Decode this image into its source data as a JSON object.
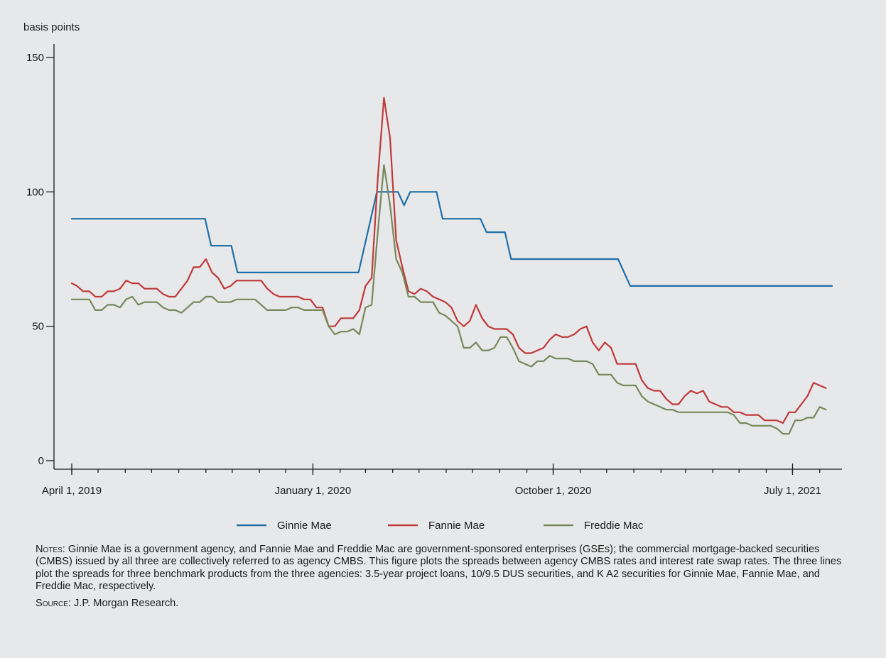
{
  "chart_data": {
    "type": "line",
    "title": "",
    "ylabel": "basis points",
    "xlabel": "",
    "ylim": [
      0,
      150
    ],
    "xlim": [
      "2019-04-01",
      "2021-08-15"
    ],
    "y_ticks": [
      0,
      50,
      100,
      150
    ],
    "x_ticks": [
      {
        "date": "2019-04-01",
        "label": "April 1, 2019"
      },
      {
        "date": "2020-01-01",
        "label": "January 1, 2020"
      },
      {
        "date": "2020-10-01",
        "label": "October 1, 2020"
      },
      {
        "date": "2021-07-01",
        "label": "July 1, 2021"
      }
    ],
    "grid": false,
    "legend_position": "bottom-center",
    "series": [
      {
        "name": "Ginnie Mae",
        "color": "#1f6fa8",
        "points": [
          [
            "2019-04-01",
            90
          ],
          [
            "2019-08-31",
            90
          ],
          [
            "2019-09-07",
            80
          ],
          [
            "2019-09-30",
            80
          ],
          [
            "2019-10-07",
            70
          ],
          [
            "2020-02-14",
            70
          ],
          [
            "2020-02-22",
            70
          ],
          [
            "2020-03-14",
            100
          ],
          [
            "2020-04-07",
            100
          ],
          [
            "2020-04-14",
            95
          ],
          [
            "2020-04-21",
            100
          ],
          [
            "2020-05-21",
            100
          ],
          [
            "2020-05-28",
            90
          ],
          [
            "2020-07-10",
            90
          ],
          [
            "2020-07-17",
            85
          ],
          [
            "2020-08-07",
            85
          ],
          [
            "2020-08-14",
            75
          ],
          [
            "2020-12-14",
            75
          ],
          [
            "2020-12-28",
            65
          ],
          [
            "2021-08-15",
            65
          ]
        ]
      },
      {
        "name": "Fannie Mae",
        "color": "#c0393b",
        "points": [
          [
            "2019-04-01",
            66
          ],
          [
            "2019-04-07",
            65
          ],
          [
            "2019-04-14",
            63
          ],
          [
            "2019-04-21",
            63
          ],
          [
            "2019-04-28",
            61
          ],
          [
            "2019-05-05",
            61
          ],
          [
            "2019-05-12",
            63
          ],
          [
            "2019-05-19",
            63
          ],
          [
            "2019-05-26",
            64
          ],
          [
            "2019-06-02",
            67
          ],
          [
            "2019-06-09",
            66
          ],
          [
            "2019-06-16",
            66
          ],
          [
            "2019-06-23",
            64
          ],
          [
            "2019-06-30",
            64
          ],
          [
            "2019-07-07",
            64
          ],
          [
            "2019-07-14",
            62
          ],
          [
            "2019-07-21",
            61
          ],
          [
            "2019-07-28",
            61
          ],
          [
            "2019-08-04",
            64
          ],
          [
            "2019-08-11",
            67
          ],
          [
            "2019-08-18",
            72
          ],
          [
            "2019-08-25",
            72
          ],
          [
            "2019-09-01",
            75
          ],
          [
            "2019-09-08",
            70
          ],
          [
            "2019-09-15",
            68
          ],
          [
            "2019-09-22",
            64
          ],
          [
            "2019-09-29",
            65
          ],
          [
            "2019-10-06",
            67
          ],
          [
            "2019-10-13",
            67
          ],
          [
            "2019-10-20",
            67
          ],
          [
            "2019-10-27",
            67
          ],
          [
            "2019-11-03",
            67
          ],
          [
            "2019-11-10",
            64
          ],
          [
            "2019-11-17",
            62
          ],
          [
            "2019-11-24",
            61
          ],
          [
            "2019-12-01",
            61
          ],
          [
            "2019-12-08",
            61
          ],
          [
            "2019-12-15",
            61
          ],
          [
            "2019-12-22",
            60
          ],
          [
            "2019-12-29",
            60
          ],
          [
            "2020-01-05",
            57
          ],
          [
            "2020-01-12",
            57
          ],
          [
            "2020-01-19",
            50
          ],
          [
            "2020-01-26",
            50
          ],
          [
            "2020-02-02",
            53
          ],
          [
            "2020-02-09",
            53
          ],
          [
            "2020-02-16",
            53
          ],
          [
            "2020-02-23",
            56
          ],
          [
            "2020-03-01",
            65
          ],
          [
            "2020-03-08",
            68
          ],
          [
            "2020-03-15",
            105
          ],
          [
            "2020-03-22",
            135
          ],
          [
            "2020-03-29",
            120
          ],
          [
            "2020-04-05",
            82
          ],
          [
            "2020-04-12",
            72
          ],
          [
            "2020-04-19",
            63
          ],
          [
            "2020-04-26",
            62
          ],
          [
            "2020-05-03",
            64
          ],
          [
            "2020-05-10",
            63
          ],
          [
            "2020-05-17",
            61
          ],
          [
            "2020-05-24",
            60
          ],
          [
            "2020-05-31",
            59
          ],
          [
            "2020-06-07",
            57
          ],
          [
            "2020-06-14",
            52
          ],
          [
            "2020-06-21",
            50
          ],
          [
            "2020-06-28",
            52
          ],
          [
            "2020-07-05",
            58
          ],
          [
            "2020-07-12",
            53
          ],
          [
            "2020-07-19",
            50
          ],
          [
            "2020-07-26",
            49
          ],
          [
            "2020-08-02",
            49
          ],
          [
            "2020-08-09",
            49
          ],
          [
            "2020-08-16",
            47
          ],
          [
            "2020-08-23",
            42
          ],
          [
            "2020-08-30",
            40
          ],
          [
            "2020-09-06",
            40
          ],
          [
            "2020-09-13",
            41
          ],
          [
            "2020-09-20",
            42
          ],
          [
            "2020-09-27",
            45
          ],
          [
            "2020-10-04",
            47
          ],
          [
            "2020-10-11",
            46
          ],
          [
            "2020-10-18",
            46
          ],
          [
            "2020-10-25",
            47
          ],
          [
            "2020-11-01",
            49
          ],
          [
            "2020-11-08",
            50
          ],
          [
            "2020-11-15",
            44
          ],
          [
            "2020-11-22",
            41
          ],
          [
            "2020-11-29",
            44
          ],
          [
            "2020-12-06",
            42
          ],
          [
            "2020-12-13",
            36
          ],
          [
            "2020-12-20",
            36
          ],
          [
            "2020-12-27",
            36
          ],
          [
            "2021-01-03",
            36
          ],
          [
            "2021-01-10",
            30
          ],
          [
            "2021-01-17",
            27
          ],
          [
            "2021-01-24",
            26
          ],
          [
            "2021-01-31",
            26
          ],
          [
            "2021-02-07",
            23
          ],
          [
            "2021-02-14",
            21
          ],
          [
            "2021-02-21",
            21
          ],
          [
            "2021-02-28",
            24
          ],
          [
            "2021-03-07",
            26
          ],
          [
            "2021-03-14",
            25
          ],
          [
            "2021-03-21",
            26
          ],
          [
            "2021-03-28",
            22
          ],
          [
            "2021-04-04",
            21
          ],
          [
            "2021-04-11",
            20
          ],
          [
            "2021-04-18",
            20
          ],
          [
            "2021-04-25",
            18
          ],
          [
            "2021-05-02",
            18
          ],
          [
            "2021-05-09",
            17
          ],
          [
            "2021-05-16",
            17
          ],
          [
            "2021-05-23",
            17
          ],
          [
            "2021-05-30",
            15
          ],
          [
            "2021-06-06",
            15
          ],
          [
            "2021-06-13",
            15
          ],
          [
            "2021-06-20",
            14
          ],
          [
            "2021-06-27",
            18
          ],
          [
            "2021-07-04",
            18
          ],
          [
            "2021-07-11",
            21
          ],
          [
            "2021-07-18",
            24
          ],
          [
            "2021-07-25",
            29
          ],
          [
            "2021-08-01",
            28
          ],
          [
            "2021-08-08",
            27
          ]
        ]
      },
      {
        "name": "Freddie Mac",
        "color": "#76885b",
        "points": [
          [
            "2019-04-01",
            60
          ],
          [
            "2019-04-07",
            60
          ],
          [
            "2019-04-14",
            60
          ],
          [
            "2019-04-21",
            60
          ],
          [
            "2019-04-28",
            56
          ],
          [
            "2019-05-05",
            56
          ],
          [
            "2019-05-12",
            58
          ],
          [
            "2019-05-19",
            58
          ],
          [
            "2019-05-26",
            57
          ],
          [
            "2019-06-02",
            60
          ],
          [
            "2019-06-09",
            61
          ],
          [
            "2019-06-16",
            58
          ],
          [
            "2019-06-23",
            59
          ],
          [
            "2019-06-30",
            59
          ],
          [
            "2019-07-07",
            59
          ],
          [
            "2019-07-14",
            57
          ],
          [
            "2019-07-21",
            56
          ],
          [
            "2019-07-28",
            56
          ],
          [
            "2019-08-04",
            55
          ],
          [
            "2019-08-11",
            57
          ],
          [
            "2019-08-18",
            59
          ],
          [
            "2019-08-25",
            59
          ],
          [
            "2019-09-01",
            61
          ],
          [
            "2019-09-08",
            61
          ],
          [
            "2019-09-15",
            59
          ],
          [
            "2019-09-22",
            59
          ],
          [
            "2019-09-29",
            59
          ],
          [
            "2019-10-06",
            60
          ],
          [
            "2019-10-13",
            60
          ],
          [
            "2019-10-20",
            60
          ],
          [
            "2019-10-27",
            60
          ],
          [
            "2019-11-03",
            58
          ],
          [
            "2019-11-10",
            56
          ],
          [
            "2019-11-17",
            56
          ],
          [
            "2019-11-24",
            56
          ],
          [
            "2019-12-01",
            56
          ],
          [
            "2019-12-08",
            57
          ],
          [
            "2019-12-15",
            57
          ],
          [
            "2019-12-22",
            56
          ],
          [
            "2019-12-29",
            56
          ],
          [
            "2020-01-05",
            56
          ],
          [
            "2020-01-12",
            56
          ],
          [
            "2020-01-19",
            50
          ],
          [
            "2020-01-26",
            47
          ],
          [
            "2020-02-02",
            48
          ],
          [
            "2020-02-09",
            48
          ],
          [
            "2020-02-16",
            49
          ],
          [
            "2020-02-23",
            47
          ],
          [
            "2020-03-01",
            57
          ],
          [
            "2020-03-08",
            58
          ],
          [
            "2020-03-15",
            85
          ],
          [
            "2020-03-22",
            110
          ],
          [
            "2020-03-29",
            95
          ],
          [
            "2020-04-05",
            75
          ],
          [
            "2020-04-12",
            70
          ],
          [
            "2020-04-19",
            61
          ],
          [
            "2020-04-26",
            61
          ],
          [
            "2020-05-03",
            59
          ],
          [
            "2020-05-10",
            59
          ],
          [
            "2020-05-17",
            59
          ],
          [
            "2020-05-24",
            55
          ],
          [
            "2020-05-31",
            54
          ],
          [
            "2020-06-07",
            52
          ],
          [
            "2020-06-14",
            50
          ],
          [
            "2020-06-21",
            42
          ],
          [
            "2020-06-28",
            42
          ],
          [
            "2020-07-05",
            44
          ],
          [
            "2020-07-12",
            41
          ],
          [
            "2020-07-19",
            41
          ],
          [
            "2020-07-26",
            42
          ],
          [
            "2020-08-02",
            46
          ],
          [
            "2020-08-09",
            46
          ],
          [
            "2020-08-16",
            42
          ],
          [
            "2020-08-23",
            37
          ],
          [
            "2020-08-30",
            36
          ],
          [
            "2020-09-06",
            35
          ],
          [
            "2020-09-13",
            37
          ],
          [
            "2020-09-20",
            37
          ],
          [
            "2020-09-27",
            39
          ],
          [
            "2020-10-04",
            38
          ],
          [
            "2020-10-11",
            38
          ],
          [
            "2020-10-18",
            38
          ],
          [
            "2020-10-25",
            37
          ],
          [
            "2020-11-01",
            37
          ],
          [
            "2020-11-08",
            37
          ],
          [
            "2020-11-15",
            36
          ],
          [
            "2020-11-22",
            32
          ],
          [
            "2020-11-29",
            32
          ],
          [
            "2020-12-06",
            32
          ],
          [
            "2020-12-13",
            29
          ],
          [
            "2020-12-20",
            28
          ],
          [
            "2020-12-27",
            28
          ],
          [
            "2021-01-03",
            28
          ],
          [
            "2021-01-10",
            24
          ],
          [
            "2021-01-17",
            22
          ],
          [
            "2021-01-24",
            21
          ],
          [
            "2021-01-31",
            20
          ],
          [
            "2021-02-07",
            19
          ],
          [
            "2021-02-14",
            19
          ],
          [
            "2021-02-21",
            18
          ],
          [
            "2021-02-28",
            18
          ],
          [
            "2021-03-07",
            18
          ],
          [
            "2021-03-14",
            18
          ],
          [
            "2021-03-21",
            18
          ],
          [
            "2021-03-28",
            18
          ],
          [
            "2021-04-04",
            18
          ],
          [
            "2021-04-11",
            18
          ],
          [
            "2021-04-18",
            18
          ],
          [
            "2021-04-25",
            17
          ],
          [
            "2021-05-02",
            14
          ],
          [
            "2021-05-09",
            14
          ],
          [
            "2021-05-16",
            13
          ],
          [
            "2021-05-23",
            13
          ],
          [
            "2021-05-30",
            13
          ],
          [
            "2021-06-06",
            13
          ],
          [
            "2021-06-13",
            12
          ],
          [
            "2021-06-20",
            10
          ],
          [
            "2021-06-27",
            10
          ],
          [
            "2021-07-04",
            15
          ],
          [
            "2021-07-11",
            15
          ],
          [
            "2021-07-18",
            16
          ],
          [
            "2021-07-25",
            16
          ],
          [
            "2021-08-01",
            20
          ],
          [
            "2021-08-08",
            19
          ]
        ]
      }
    ]
  },
  "notes": {
    "notes_label": "Notes",
    "notes_text": ": Ginnie Mae is a government agency, and Fannie Mae and Freddie Mac are government-sponsored enterprises (GSEs); the commercial mortgage-backed securities (CMBS) issued by all three are collectively referred to as agency CMBS. This figure plots the spreads between agency CMBS rates and interest rate swap rates. The three lines plot the spreads for three benchmark products from the three agencies: 3.5-year project loans, 10/9.5 DUS securities, and K A2 securities for Ginnie Mae, Fannie Mae, and Freddie Mac, respectively.",
    "source_label": "Source",
    "source_text": ": J.P. Morgan Research."
  }
}
